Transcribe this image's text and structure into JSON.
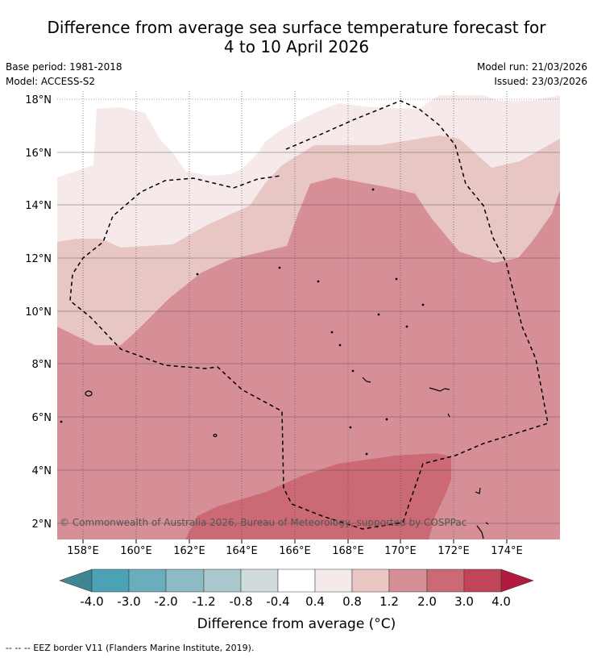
{
  "title_line1": "Difference from average sea surface temperature forecast for",
  "title_line2": "4 to 10 April 2026",
  "base_period": "Base period: 1981-2018",
  "model": "Model: ACCESS-S2",
  "model_run": "Model run: 21/03/2026",
  "issued": "Issued: 23/03/2026",
  "map": {
    "lon_labels": [
      "158°E",
      "160°E",
      "162°E",
      "164°E",
      "166°E",
      "168°E",
      "170°E",
      "172°E",
      "174°E"
    ],
    "lat_labels": [
      "18°N",
      "16°N",
      "14°N",
      "12°N",
      "10°N",
      "8°N",
      "6°N",
      "4°N",
      "2°N"
    ],
    "copyright": "© Commonwealth of Australia 2026, Bureau of Meteorology, supported by COSPPac"
  },
  "colorbar": {
    "labels": [
      "-4.0",
      "-3.0",
      "-2.0",
      "-1.2",
      "-0.8",
      "-0.4",
      "0.4",
      "0.8",
      "1.2",
      "2.0",
      "3.0",
      "4.0"
    ],
    "colors": [
      "#3f8593",
      "#4aa2b4",
      "#6aaebe",
      "#8dbac4",
      "#a9c9cd",
      "#cfdbdc",
      "#ffffff",
      "#f5e9e9",
      "#e8c6c3",
      "#d68f97",
      "#cb6a75",
      "#c0455a",
      "#b01a3c"
    ],
    "title": "Difference from average (°C)"
  },
  "legend_note": "--  --  -- EEZ border V11 (Flanders Marine Institute, 2019)."
}
